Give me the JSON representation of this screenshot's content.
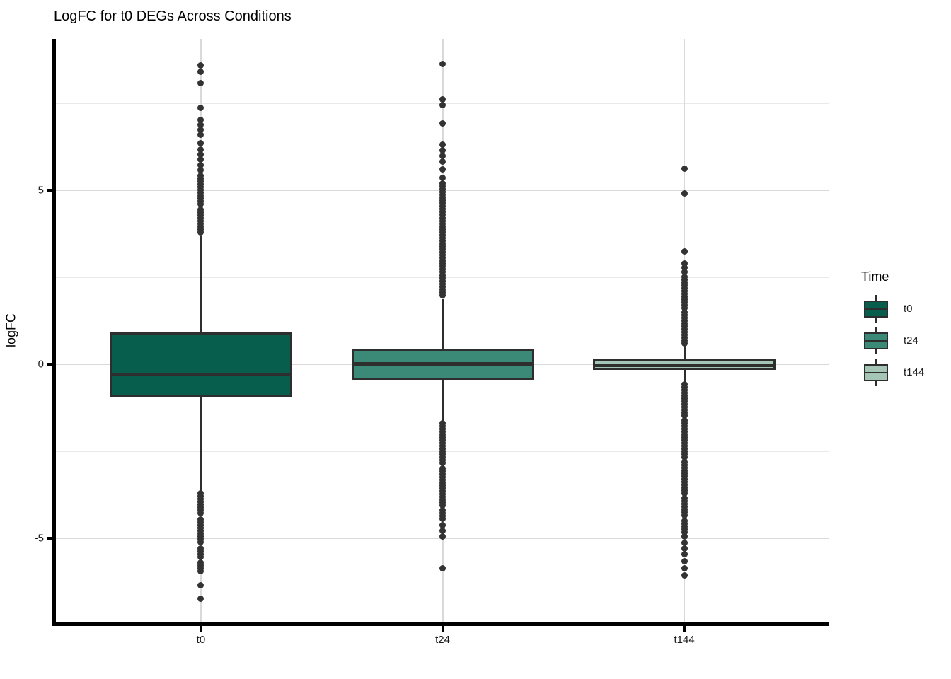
{
  "chart_data": {
    "type": "boxplot",
    "title": "LogFC for t0 DEGs Across Conditions",
    "ylabel": "logFC",
    "xlabel": "",
    "categories": [
      "t0",
      "t24",
      "t144"
    ],
    "ylim": [
      -7.41,
      9.35
    ],
    "y_major_ticks": [
      5,
      0,
      -5
    ],
    "y_major_labels": [
      "5",
      "0",
      "-5"
    ],
    "y_minor_ticks": [
      7.5,
      2.5,
      -2.5
    ],
    "grid": "major and minor horizontal, major vertical at categories",
    "legend": {
      "title": "Time",
      "position": "right",
      "entries": [
        {
          "label": "t0",
          "fill": "#075e4d"
        },
        {
          "label": "t24",
          "fill": "#3a8a77"
        },
        {
          "label": "t144",
          "fill": "#a5c6b7"
        }
      ]
    },
    "series": [
      {
        "name": "t0",
        "fill": "#075e4d",
        "q1": -0.95,
        "median": -0.29,
        "q3": 0.92,
        "whisker_low": -3.66,
        "whisker_high": 3.7,
        "outliers_high": [
          8.59,
          8.41,
          8.08,
          7.37,
          7.02,
          6.88,
          6.74,
          6.6,
          6.35,
          6.18,
          6.02,
          5.88,
          5.72,
          5.58
        ],
        "outliers_high_dense": [
          [
            5.42,
            4.55
          ],
          [
            4.45,
            3.72
          ]
        ],
        "outliers_low": [
          -6.34,
          -6.73
        ],
        "outliers_low_dense": [
          [
            -3.7,
            -4.35
          ],
          [
            -4.45,
            -5.12
          ],
          [
            -5.28,
            -5.6
          ],
          [
            -5.7,
            -5.95
          ]
        ]
      },
      {
        "name": "t24",
        "fill": "#3a8a77",
        "q1": -0.44,
        "median": 0.02,
        "q3": 0.45,
        "whisker_low": -1.67,
        "whisker_high": 1.87,
        "outliers_high": [
          8.62,
          7.62,
          7.45,
          6.92,
          6.32,
          6.15,
          5.98,
          5.82,
          5.6,
          5.35
        ],
        "outliers_high_dense": [
          [
            5.2,
            4.3
          ],
          [
            4.2,
            2.65
          ],
          [
            2.55,
            1.9
          ]
        ],
        "outliers_low": [
          -4.62,
          -4.78,
          -4.94,
          -5.85
        ],
        "outliers_low_dense": [
          [
            -1.7,
            -2.9
          ],
          [
            -3.0,
            -4.1
          ],
          [
            -4.2,
            -4.52
          ]
        ]
      },
      {
        "name": "t144",
        "fill": "#a5c6b7",
        "q1": -0.16,
        "median": -0.03,
        "q3": 0.14,
        "whisker_low": -0.55,
        "whisker_high": 0.55,
        "outliers_high": [
          5.63,
          4.92,
          3.25,
          2.9,
          2.78,
          2.65
        ],
        "outliers_high_dense": [
          [
            2.52,
            1.6
          ],
          [
            1.5,
            0.58
          ]
        ],
        "outliers_low": [
          -4.95,
          -5.12,
          -5.28,
          -5.45,
          -5.65,
          -5.85,
          -6.05
        ],
        "outliers_low_dense": [
          [
            -0.58,
            -1.5
          ],
          [
            -1.6,
            -2.7
          ],
          [
            -2.8,
            -3.76
          ],
          [
            -3.85,
            -4.4
          ],
          [
            -4.5,
            -4.85
          ]
        ]
      }
    ],
    "style_colors": {
      "box_stroke": "#2e2e2e",
      "outlier": "#333333",
      "grid_major": "#d9d9d9",
      "grid_minor": "#e9e9e9",
      "axis_line": "#000000",
      "text": "#1a1a1a"
    }
  }
}
